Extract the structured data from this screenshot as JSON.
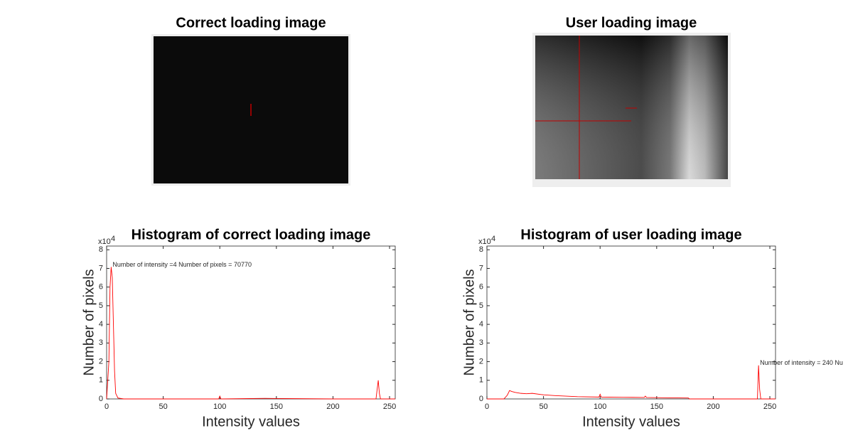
{
  "chart_data": [
    {
      "type": "image",
      "title": "Correct loading image"
    },
    {
      "type": "image",
      "title": "User loading image"
    },
    {
      "type": "line",
      "title": "Histogram of correct loading image",
      "xlabel": "Intensity values",
      "ylabel": "Number of pixels",
      "y_multiplier": "x10",
      "y_multiplier_exponent": "4",
      "annotation": "Number of intensity =4  Number of pixels = 70770",
      "xlim": [
        0,
        255
      ],
      "xticks": [
        0,
        50,
        100,
        150,
        200,
        250
      ],
      "ylim": [
        0,
        82000
      ],
      "yticks": [
        {
          "value": 0,
          "label": "0"
        },
        {
          "value": 10000,
          "label": "1"
        },
        {
          "value": 20000,
          "label": "2"
        },
        {
          "value": 30000,
          "label": "3"
        },
        {
          "value": 40000,
          "label": "4"
        },
        {
          "value": 50000,
          "label": "5"
        },
        {
          "value": 60000,
          "label": "6"
        },
        {
          "value": 70000,
          "label": "7"
        },
        {
          "value": 80000,
          "label": "8"
        }
      ],
      "series": [
        {
          "name": "Histogram",
          "color": "#ff0000",
          "x": [
            0,
            2,
            3,
            4,
            5,
            6,
            7,
            8,
            10,
            15,
            50,
            99,
            100,
            101,
            102,
            140,
            200,
            238,
            240,
            241,
            242,
            245,
            255
          ],
          "values": [
            0,
            20000,
            60000,
            70770,
            65000,
            40000,
            15000,
            3000,
            500,
            0,
            0,
            0,
            1500,
            0,
            0,
            300,
            0,
            0,
            10000,
            3000,
            0,
            0,
            0
          ]
        }
      ]
    },
    {
      "type": "line",
      "title": "Histogram of user loading image",
      "xlabel": "Intensity values",
      "ylabel": "Number of pixels",
      "y_multiplier": "x10",
      "y_multiplier_exponent": "4",
      "annotation": "Number of intensity = 240    Nu",
      "xlim": [
        0,
        255
      ],
      "xticks": [
        0,
        50,
        100,
        150,
        200,
        250
      ],
      "ylim": [
        0,
        82000
      ],
      "yticks": [
        {
          "value": 0,
          "label": "0"
        },
        {
          "value": 10000,
          "label": "1"
        },
        {
          "value": 20000,
          "label": "2"
        },
        {
          "value": 30000,
          "label": "3"
        },
        {
          "value": 40000,
          "label": "4"
        },
        {
          "value": 50000,
          "label": "5"
        },
        {
          "value": 60000,
          "label": "6"
        },
        {
          "value": 70000,
          "label": "7"
        },
        {
          "value": 80000,
          "label": "8"
        }
      ],
      "series": [
        {
          "name": "Histogram",
          "color": "#ff0000",
          "x": [
            0,
            15,
            18,
            20,
            22,
            25,
            30,
            35,
            40,
            50,
            60,
            80,
            99,
            100,
            101,
            120,
            139,
            140,
            141,
            160,
            178,
            179,
            235,
            239,
            240,
            241,
            242,
            245,
            255
          ],
          "values": [
            0,
            0,
            2000,
            4500,
            4000,
            3500,
            3000,
            2800,
            3000,
            2200,
            1800,
            1200,
            1000,
            2500,
            1000,
            900,
            800,
            1500,
            800,
            600,
            500,
            0,
            0,
            0,
            18000,
            5000,
            0,
            0,
            0
          ]
        }
      ]
    }
  ]
}
